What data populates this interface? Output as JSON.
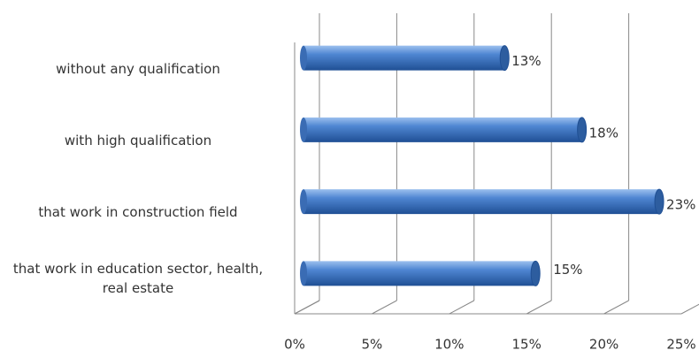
{
  "chart_data": {
    "type": "bar",
    "orientation": "horizontal",
    "categories": [
      "without any qualification",
      "with high qualification",
      "that work in construction field",
      "that work in education sector, health, real estate"
    ],
    "values": [
      13,
      18,
      23,
      15
    ],
    "value_labels": [
      "13%",
      "18%",
      "23%",
      "15%"
    ],
    "color": "#3f74c0",
    "xlim": [
      0,
      25
    ],
    "xticks": [
      {
        "value": 0,
        "label": "0%"
      },
      {
        "value": 5,
        "label": "5%"
      },
      {
        "value": 10,
        "label": "10%"
      },
      {
        "value": 15,
        "label": "15%"
      },
      {
        "value": 20,
        "label": "20%"
      },
      {
        "value": 25,
        "label": "25%"
      }
    ],
    "grid": true
  }
}
